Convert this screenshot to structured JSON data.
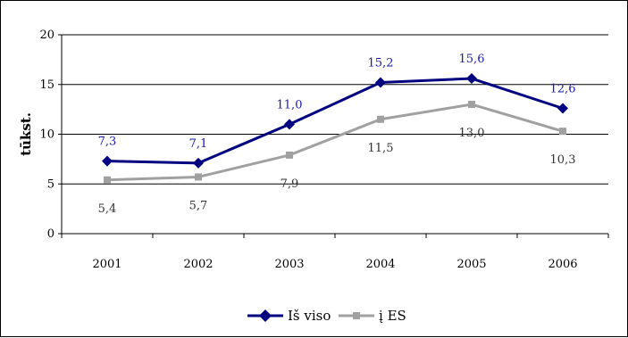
{
  "chart_data": {
    "type": "line",
    "title": "",
    "xlabel": "",
    "ylabel": "tūkst.",
    "categories": [
      "2001",
      "2002",
      "2003",
      "2004",
      "2005",
      "2006"
    ],
    "ylim": [
      0,
      20
    ],
    "yticks": [
      0,
      5,
      10,
      15,
      20
    ],
    "grid": true,
    "legend_position": "bottom",
    "series": [
      {
        "name": "Iš viso",
        "values": [
          7.3,
          7.1,
          11.0,
          15.2,
          15.6,
          12.6
        ],
        "labels": [
          "7,3",
          "7,1",
          "11,0",
          "15,2",
          "15,6",
          "12,6"
        ],
        "color": "#000080",
        "label_color": "#1a1aa6",
        "marker": "diamond"
      },
      {
        "name": "į ES",
        "values": [
          5.4,
          5.7,
          7.9,
          11.5,
          13.0,
          10.3
        ],
        "labels": [
          "5,4",
          "5,7",
          "7,9",
          "11,5",
          "13,0",
          "10,3"
        ],
        "color": "#a0a0a0",
        "label_color": "#333333",
        "marker": "square"
      }
    ]
  }
}
